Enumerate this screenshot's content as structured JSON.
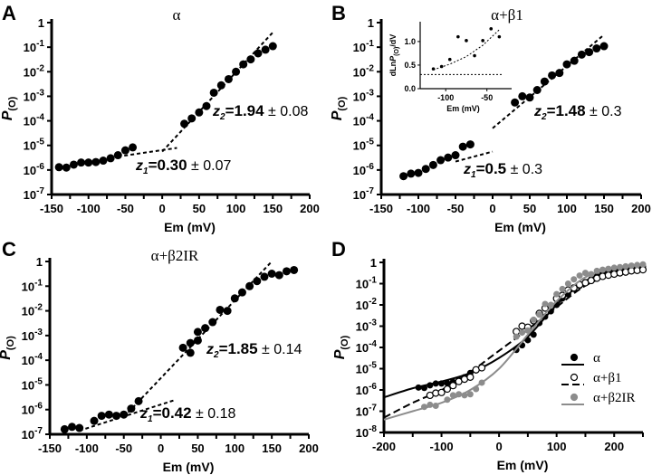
{
  "chart_data": [
    {
      "panel": "A",
      "type": "scatter",
      "title": "α",
      "xlabel": "Em (mV)",
      "ylabel": {
        "main": "P",
        "sub": "(O)"
      },
      "xlim": [
        -150,
        200
      ],
      "ylim": [
        1e-07,
        1
      ],
      "yscale": "log",
      "xticks": [
        -150,
        -100,
        -50,
        0,
        50,
        100,
        150,
        200
      ],
      "yticks": [
        {
          "base": "1",
          "exp": ""
        },
        {
          "base": "10",
          "exp": "-1"
        },
        {
          "base": "10",
          "exp": "-2"
        },
        {
          "base": "10",
          "exp": "-3"
        },
        {
          "base": "10",
          "exp": "-4"
        },
        {
          "base": "10",
          "exp": "-5"
        },
        {
          "base": "10",
          "exp": "-6"
        },
        {
          "base": "10",
          "exp": "-7"
        }
      ],
      "series": [
        {
          "marker": "filled",
          "color": "#000000",
          "x": [
            -140,
            -130,
            -120,
            -110,
            -100,
            -90,
            -80,
            -70,
            -60,
            -50,
            -40,
            30,
            40,
            50,
            60,
            70,
            80,
            90,
            100,
            110,
            120,
            130,
            140,
            150
          ],
          "y": [
            1.3e-06,
            1.25e-06,
            1.65e-06,
            2e-06,
            2e-06,
            2.1e-06,
            2.4e-06,
            3e-06,
            4e-06,
            6.3e-06,
            8.3e-06,
            7.6e-05,
            0.000126,
            0.00022,
            0.0004,
            0.0014,
            0.0028,
            0.005,
            0.01,
            0.02,
            0.032,
            0.056,
            0.079,
            0.11
          ]
        }
      ],
      "fits": [
        {
          "x": [
            -60,
            20
          ],
          "y": [
            3.5e-06,
            7.9e-06
          ]
        },
        {
          "x": [
            0,
            150
          ],
          "y": [
            5.6e-06,
            0.4
          ]
        }
      ],
      "annotations": [
        {
          "var": "z",
          "sub": "2",
          "value": "=1.94",
          "err": " ± 0.08"
        },
        {
          "var": "z",
          "sub": "1",
          "value": "=0.30",
          "err": " ± 0.07"
        }
      ]
    },
    {
      "panel": "B",
      "type": "scatter",
      "title": "α+β1",
      "xlabel": "Em (mV)",
      "ylabel": {
        "main": "P",
        "sub": "(O)"
      },
      "xlim": [
        -150,
        200
      ],
      "ylim": [
        1e-07,
        1
      ],
      "yscale": "log",
      "xticks": [
        -150,
        -100,
        -50,
        0,
        50,
        100,
        150,
        200
      ],
      "yticks": [
        {
          "base": "1",
          "exp": ""
        },
        {
          "base": "10",
          "exp": "-1"
        },
        {
          "base": "10",
          "exp": "-2"
        },
        {
          "base": "10",
          "exp": "-3"
        },
        {
          "base": "10",
          "exp": "-4"
        },
        {
          "base": "10",
          "exp": "-5"
        },
        {
          "base": "10",
          "exp": "-6"
        },
        {
          "base": "10",
          "exp": "-7"
        }
      ],
      "series": [
        {
          "marker": "filled",
          "color": "#000000",
          "x": [
            -120,
            -110,
            -100,
            -90,
            -80,
            -70,
            -60,
            -50,
            -40,
            -30,
            30,
            40,
            50,
            60,
            70,
            80,
            90,
            100,
            110,
            120,
            130,
            140,
            150
          ],
          "y": [
            5.6e-07,
            7.1e-07,
            7.6e-07,
            1.1e-06,
            1.6e-06,
            2.5e-06,
            3.2e-06,
            4e-06,
            8.9e-06,
            1.1e-05,
            0.00056,
            0.001,
            0.00089,
            0.0018,
            0.004,
            0.0071,
            0.0089,
            0.02,
            0.028,
            0.05,
            0.063,
            0.089,
            0.11
          ]
        }
      ],
      "fits": [
        {
          "x": [
            -50,
            0
          ],
          "y": [
            2.2e-06,
            5.6e-06
          ]
        },
        {
          "x": [
            0,
            150
          ],
          "y": [
            5e-05,
            0.32
          ]
        }
      ],
      "annotations": [
        {
          "var": "z",
          "sub": "2",
          "value": "=1.48",
          "err": " ± 0.3"
        },
        {
          "var": "z",
          "sub": "1",
          "value": "=0.5",
          "err": " ± 0.3"
        }
      ],
      "inset": {
        "type": "scatter",
        "xlabel": "Em (mV)",
        "ylabel": {
          "pre": "dLn",
          "main": "P",
          "sub": "(O)",
          "post": "/dV"
        },
        "xlim": [
          -131,
          -20
        ],
        "ylim": [
          0,
          1.42
        ],
        "xticks": [
          -100,
          -50
        ],
        "yticks": [
          "0.0",
          "0.5",
          "1.0"
        ],
        "x": [
          -115,
          -105,
          -95,
          -85,
          -75,
          -65,
          -55,
          -45,
          -35
        ],
        "y": [
          0.42,
          0.47,
          0.62,
          1.1,
          1.02,
          0.7,
          1.02,
          1.27,
          1.1
        ],
        "fit_curve": {
          "x": [
            -115,
            -95,
            -75,
            -55,
            -35
          ],
          "y": [
            0.4,
            0.52,
            0.68,
            0.92,
            1.25
          ]
        },
        "reference_line": 0.3
      }
    },
    {
      "panel": "C",
      "type": "scatter",
      "title": "α+β2IR",
      "xlabel": "Em (mV)",
      "ylabel": {
        "main": "P",
        "sub": "(O)"
      },
      "xlim": [
        -150,
        200
      ],
      "ylim": [
        1e-07,
        1
      ],
      "yscale": "log",
      "xticks": [
        -150,
        -100,
        -50,
        0,
        50,
        100,
        150,
        200
      ],
      "yticks": [
        {
          "base": "1",
          "exp": ""
        },
        {
          "base": "10",
          "exp": "-1"
        },
        {
          "base": "10",
          "exp": "-2"
        },
        {
          "base": "10",
          "exp": "-3"
        },
        {
          "base": "10",
          "exp": "-4"
        },
        {
          "base": "10",
          "exp": "-5"
        },
        {
          "base": "10",
          "exp": "-6"
        },
        {
          "base": "10",
          "exp": "-7"
        }
      ],
      "series": [
        {
          "marker": "filled",
          "color": "#000000",
          "x": [
            -130,
            -120,
            -110,
            -90,
            -80,
            -70,
            -60,
            -50,
            -40,
            -30,
            30,
            40,
            40,
            50,
            50,
            60,
            70,
            80,
            90,
            100,
            110,
            120,
            130,
            140,
            150,
            160,
            170,
            180
          ],
          "y": [
            1.6e-07,
            2e-07,
            1.8e-07,
            3.5e-07,
            5.6e-07,
            6.3e-07,
            5.6e-07,
            6.3e-07,
            1.1e-06,
            2.2e-06,
            0.00032,
            0.0005,
            0.0002,
            0.00063,
            0.0014,
            0.002,
            0.0035,
            0.011,
            0.01,
            0.032,
            0.056,
            0.1,
            0.16,
            0.24,
            0.32,
            0.28,
            0.4,
            0.45
          ]
        }
      ],
      "fits": [
        {
          "x": [
            -110,
            20
          ],
          "y": [
            1.4e-07,
            2.5e-06
          ]
        },
        {
          "x": [
            -50,
            150
          ],
          "y": [
            5e-07,
            1
          ]
        }
      ],
      "annotations": [
        {
          "var": "z",
          "sub": "2",
          "value": "=1.85",
          "err": " ± 0.14"
        },
        {
          "var": "z",
          "sub": "1",
          "value": "=0.42",
          "err": " ± 0.18"
        }
      ]
    },
    {
      "panel": "D",
      "type": "scatter",
      "title": "",
      "xlabel": "Em (mV)",
      "ylabel": {
        "main": "P",
        "sub": "(O)"
      },
      "xlim": [
        -200,
        250
      ],
      "ylim": [
        1e-08,
        1
      ],
      "yscale": "log",
      "xticks": [
        -200,
        -100,
        0,
        100,
        200
      ],
      "yticks": [
        {
          "base": "1",
          "exp": ""
        },
        {
          "base": "10",
          "exp": "-1"
        },
        {
          "base": "10",
          "exp": "-2"
        },
        {
          "base": "10",
          "exp": "-3"
        },
        {
          "base": "10",
          "exp": "-4"
        },
        {
          "base": "10",
          "exp": "-5"
        },
        {
          "base": "10",
          "exp": "-6"
        },
        {
          "base": "10",
          "exp": "-7"
        },
        {
          "base": "10",
          "exp": "-8"
        }
      ],
      "legend_position": "right",
      "series": [
        {
          "name": "α",
          "marker": "filled",
          "color": "#000000",
          "line": "solid",
          "x": [
            -140,
            -130,
            -120,
            -110,
            -100,
            -90,
            -80,
            -70,
            -60,
            -50,
            -40,
            30,
            40,
            50,
            60,
            70,
            80,
            90,
            100,
            110,
            120,
            130,
            140,
            150,
            160,
            170,
            180,
            190,
            200,
            210,
            220,
            230,
            240,
            250
          ],
          "y": [
            1.3e-06,
            1.25e-06,
            1.65e-06,
            2e-06,
            2e-06,
            2.1e-06,
            2.4e-06,
            3e-06,
            4e-06,
            6.3e-06,
            8.3e-06,
            7.6e-05,
            0.000126,
            0.00022,
            0.0004,
            0.0014,
            0.0028,
            0.005,
            0.01,
            0.02,
            0.032,
            0.056,
            0.079,
            0.11,
            0.16,
            0.22,
            0.3,
            0.35,
            0.4,
            0.45,
            0.5,
            0.56,
            0.6,
            0.63
          ],
          "fit": {
            "x": [
              -200,
              -150,
              -100,
              -50,
              0,
              50,
              100,
              150,
              200,
              250
            ],
            "y": [
              4.5e-07,
              1.2e-06,
              2.5e-06,
              6.3e-06,
              3.2e-05,
              0.00032,
              0.01,
              0.13,
              0.45,
              0.7
            ]
          }
        },
        {
          "name": "α+β1",
          "marker": "open",
          "color": "#000000",
          "line": "dashed",
          "x": [
            -120,
            -110,
            -100,
            -90,
            -80,
            -70,
            -60,
            -50,
            -40,
            -30,
            30,
            40,
            50,
            60,
            70,
            80,
            90,
            100,
            110,
            120,
            130,
            140,
            150,
            160,
            170,
            180,
            190,
            200,
            210,
            220,
            230,
            240,
            250
          ],
          "y": [
            5.6e-07,
            7.1e-07,
            7.6e-07,
            1.1e-06,
            1.6e-06,
            2.5e-06,
            3.2e-06,
            4e-06,
            8.9e-06,
            1.1e-05,
            0.00056,
            0.001,
            0.00089,
            0.0018,
            0.004,
            0.0071,
            0.0089,
            0.02,
            0.028,
            0.05,
            0.063,
            0.089,
            0.11,
            0.14,
            0.18,
            0.22,
            0.25,
            0.28,
            0.32,
            0.35,
            0.4,
            0.42,
            0.45
          ],
          "fit": {
            "x": [
              -200,
              -150,
              -100,
              -50,
              0,
              50,
              100,
              150,
              200,
              250
            ],
            "y": [
              5e-08,
              2.5e-07,
              1e-06,
              7e-06,
              7e-05,
              0.0007,
              0.008,
              0.08,
              0.28,
              0.5
            ]
          }
        },
        {
          "name": "α+β2IR",
          "marker": "filled",
          "color": "#8c8c8c",
          "line": "solid",
          "x": [
            -130,
            -120,
            -110,
            -90,
            -80,
            -70,
            -60,
            -50,
            -40,
            -30,
            30,
            40,
            50,
            60,
            70,
            80,
            90,
            100,
            110,
            120,
            130,
            140,
            150,
            160,
            170,
            180,
            190,
            200,
            210,
            220,
            230,
            240,
            250
          ],
          "y": [
            1.6e-07,
            2e-07,
            1.8e-07,
            3.5e-07,
            5.6e-07,
            6.3e-07,
            5.6e-07,
            6.3e-07,
            1.1e-06,
            2.2e-06,
            0.00032,
            0.0005,
            0.00063,
            0.002,
            0.0035,
            0.011,
            0.01,
            0.032,
            0.056,
            0.1,
            0.16,
            0.24,
            0.32,
            0.28,
            0.4,
            0.45,
            0.5,
            0.56,
            0.6,
            0.65,
            0.7,
            0.75,
            0.8
          ],
          "fit": {
            "x": [
              -200,
              -150,
              -100,
              -50,
              0,
              50,
              100,
              150,
              200,
              250
            ],
            "y": [
              4e-08,
              1e-07,
              2.5e-07,
              1e-06,
              1e-05,
              0.0004,
              0.015,
              0.2,
              0.55,
              0.8
            ]
          }
        }
      ]
    }
  ]
}
